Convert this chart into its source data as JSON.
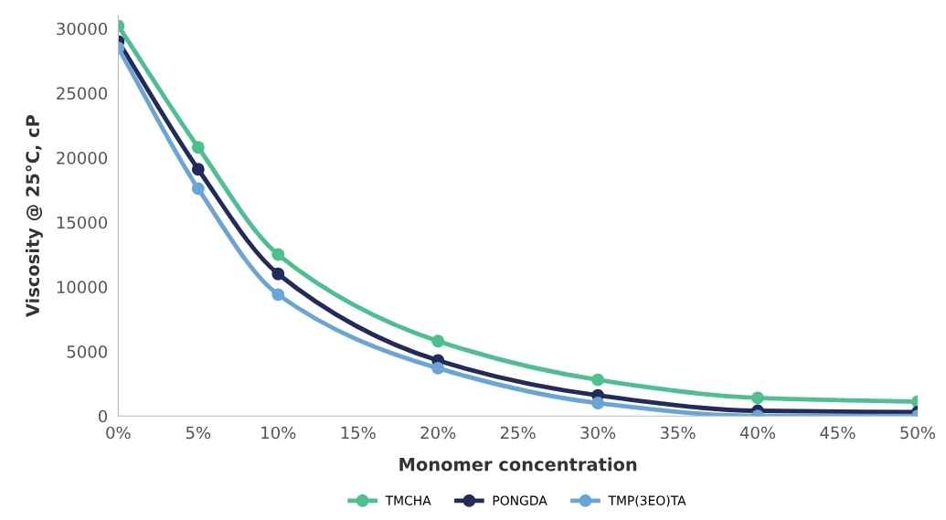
{
  "chart_data": {
    "type": "line",
    "xlabel": "Monomer concentration",
    "ylabel": "Viscosity @ 25°C, cP",
    "x": [
      0,
      5,
      10,
      20,
      30,
      40,
      50
    ],
    "xlim": [
      0,
      50
    ],
    "xticks": [
      {
        "value": 0,
        "label": "0%"
      },
      {
        "value": 5,
        "label": "5%"
      },
      {
        "value": 10,
        "label": "10%"
      },
      {
        "value": 15,
        "label": "15%"
      },
      {
        "value": 20,
        "label": "20%"
      },
      {
        "value": 25,
        "label": "25%"
      },
      {
        "value": 30,
        "label": "30%"
      },
      {
        "value": 35,
        "label": "35%"
      },
      {
        "value": 40,
        "label": "40%"
      },
      {
        "value": 45,
        "label": "45%"
      },
      {
        "value": 50,
        "label": "50%"
      }
    ],
    "ylim": [
      0,
      31000
    ],
    "yticks": [
      0,
      5000,
      10000,
      15000,
      20000,
      25000,
      30000
    ],
    "series": [
      {
        "name": "TMCHA",
        "color": "#4cc08f",
        "values": [
          30200,
          20800,
          12500,
          5800,
          2800,
          1400,
          1100
        ]
      },
      {
        "name": "PONGDA",
        "color": "#232a5c",
        "values": [
          29000,
          19100,
          11000,
          4300,
          1600,
          400,
          300
        ]
      },
      {
        "name": "TMP(3EO)TA",
        "color": "#6aa5d8",
        "values": [
          28500,
          17600,
          9400,
          3700,
          1000,
          0,
          0
        ]
      }
    ],
    "marker": "circle",
    "line_style": "solid",
    "grid": false,
    "legend": "bottom"
  }
}
